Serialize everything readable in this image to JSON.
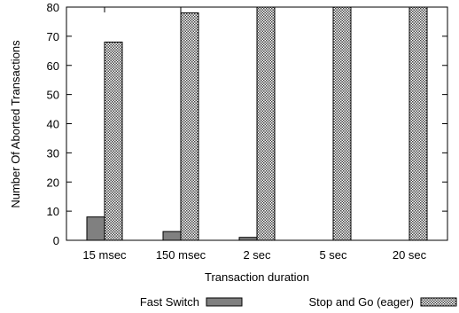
{
  "chart_data": {
    "type": "bar",
    "title": "",
    "xlabel": "Transaction duration",
    "ylabel": "Number Of Aborted Transactions",
    "categories": [
      "15 msec",
      "150 msec",
      "2 sec",
      "5 sec",
      "20 sec"
    ],
    "ylim": [
      0,
      80
    ],
    "yticks": [
      0,
      10,
      20,
      30,
      40,
      50,
      60,
      70,
      80
    ],
    "grid": false,
    "legend_position": "bottom",
    "series": [
      {
        "name": "Fast Switch",
        "values": [
          8,
          3,
          1,
          0,
          0
        ],
        "fill": "solid-gray",
        "color": "#808080"
      },
      {
        "name": "Stop and Go (eager)",
        "values": [
          68,
          78,
          80,
          80,
          80
        ],
        "fill": "crosshatch",
        "color": "#555555"
      }
    ]
  }
}
